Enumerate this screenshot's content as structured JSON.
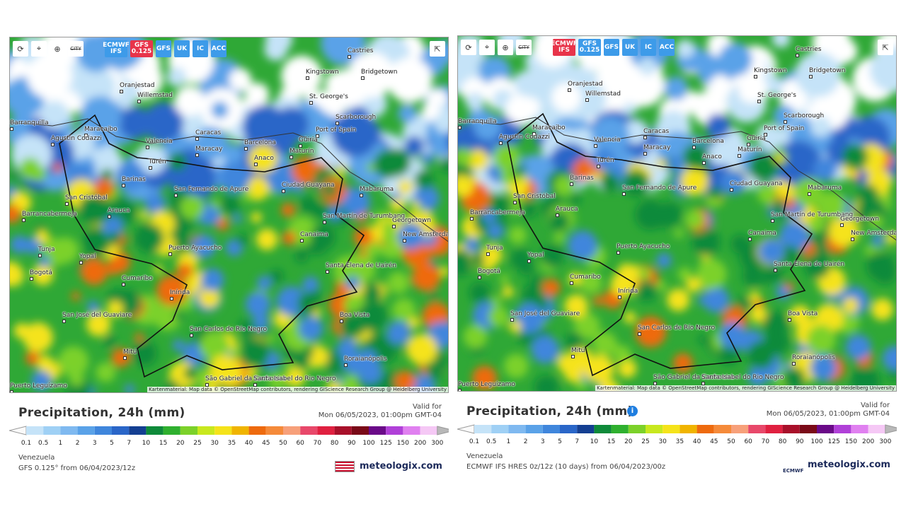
{
  "panels": [
    {
      "toolbar": {
        "city": "CITY",
        "buttons": [
          "ECMWF IFS",
          "GFS 0.125",
          "GFS",
          "UK",
          "IC",
          "ACC"
        ],
        "active": 1
      },
      "places": [
        "Castries",
        "Kingstown",
        "Bridgetown",
        "Oranjestad",
        "Willemstad",
        "St. George's",
        "Scarborough",
        "Barranquilla",
        "Maracaibo",
        "Port of Spain",
        "Caracas",
        "Valencia",
        "Barcelona",
        "Güiria",
        "Agustín Codazzi",
        "Maracay",
        "Maturín",
        "Anaco",
        "Turén",
        "Barinas",
        "Ciudad Guayana",
        "Mabaruma",
        "San Fernando de Apure",
        "San Cristóbal",
        "Arauca",
        "Barrancabermeja",
        "San Martín de Turumbang",
        "Georgetown",
        "Canaima",
        "New Amsterdam",
        "Puerto Ayacucho",
        "Tunja",
        "Yopal",
        "Bogotá",
        "Santa Elena de Uairén",
        "Cumaribo",
        "Inírida",
        "Boa Vista",
        "San José del Guaviare",
        "San Carlos de Río Negro",
        "Mitú",
        "Roraianópolis",
        "São Gabriel da Cachoeira",
        "Santa Isabel do Rio Negro",
        "Puerto Leguízamo"
      ],
      "attribution": "Kartenmaterial: Map data © OpenStreetMap contributors, rendering GIScience Research Group @ Heidelberg University",
      "title": "Precipitation, 24h (mm)",
      "valid_label": "Valid for",
      "valid_time": "Mon 06/05/2023, 01:00pm GMT-04",
      "region": "Venezuela",
      "model": "GFS 0.125° from 06/04/2023/12z",
      "brand": "meteologix.com",
      "wet": 0.35
    },
    {
      "toolbar": {
        "city": "CITY",
        "buttons": [
          "ECMWF IFS",
          "GFS 0.125",
          "GFS",
          "UK",
          "IC",
          "ACC"
        ],
        "active": 0
      },
      "places": [
        "Castries",
        "Kingstown",
        "Bridgetown",
        "Oranjestad",
        "Willemstad",
        "St. George's",
        "Scarborough",
        "Barranquilla",
        "Maracaibo",
        "Port of Spain",
        "Caracas",
        "Valencia",
        "Barcelona",
        "Güiria",
        "Agustín Codazzi",
        "Maracay",
        "Maturín",
        "Anaco",
        "Turén",
        "Barinas",
        "Ciudad Guayana",
        "Mabaruma",
        "San Fernando de Apure",
        "San Cristóbal",
        "Arauca",
        "Barrancabermeja",
        "San Martín de Turumbang",
        "Georgetown",
        "Canaima",
        "New Amsterdam",
        "Puerto Ayacucho",
        "Tunja",
        "Yopal",
        "Bogotá",
        "Santa Elena de Uairén",
        "Cumaribo",
        "Inírida",
        "Boa Vista",
        "San José del Guaviare",
        "San Carlos de Río Negro",
        "Mitú",
        "Roraianópolis",
        "São Gabriel da Cachoeira",
        "Santa Isabel do Rio Negro",
        "Puerto Leguízamo"
      ],
      "attribution": "Kartenmaterial: Map data © OpenStreetMap contributors, rendering GIScience Research Group @ Heidelberg University",
      "title": "Precipitation, 24h (mm)",
      "valid_label": "Valid for",
      "valid_time": "Mon 06/05/2023, 01:00pm GMT-04",
      "region": "Venezuela",
      "model": "ECMWF IFS HRES 0z/12z (10 days) from 06/04/2023/00z",
      "brand": "meteologix.com",
      "model_logo": "ECMWF",
      "wet": 0.7
    }
  ],
  "legend": {
    "labels": [
      "0.1",
      "0.5",
      "1",
      "2",
      "3",
      "5",
      "7",
      "10",
      "15",
      "20",
      "25",
      "30",
      "35",
      "40",
      "45",
      "50",
      "60",
      "70",
      "80",
      "90",
      "100",
      "125",
      "150",
      "200",
      "300"
    ],
    "colors": [
      "#c5e3f8",
      "#9fd0f5",
      "#7fb9f0",
      "#5aa2e8",
      "#3f86dc",
      "#2a66c8",
      "#143f92",
      "#0f8a3a",
      "#2fb02f",
      "#7cd12a",
      "#c8e81e",
      "#f5e31a",
      "#f0b400",
      "#ee6a0e",
      "#f58a3a",
      "#f7a07a",
      "#e8486a",
      "#e02040",
      "#a8102a",
      "#7a0a18",
      "#6a0a88",
      "#b040d8",
      "#e080f0",
      "#f5c8f5"
    ]
  }
}
